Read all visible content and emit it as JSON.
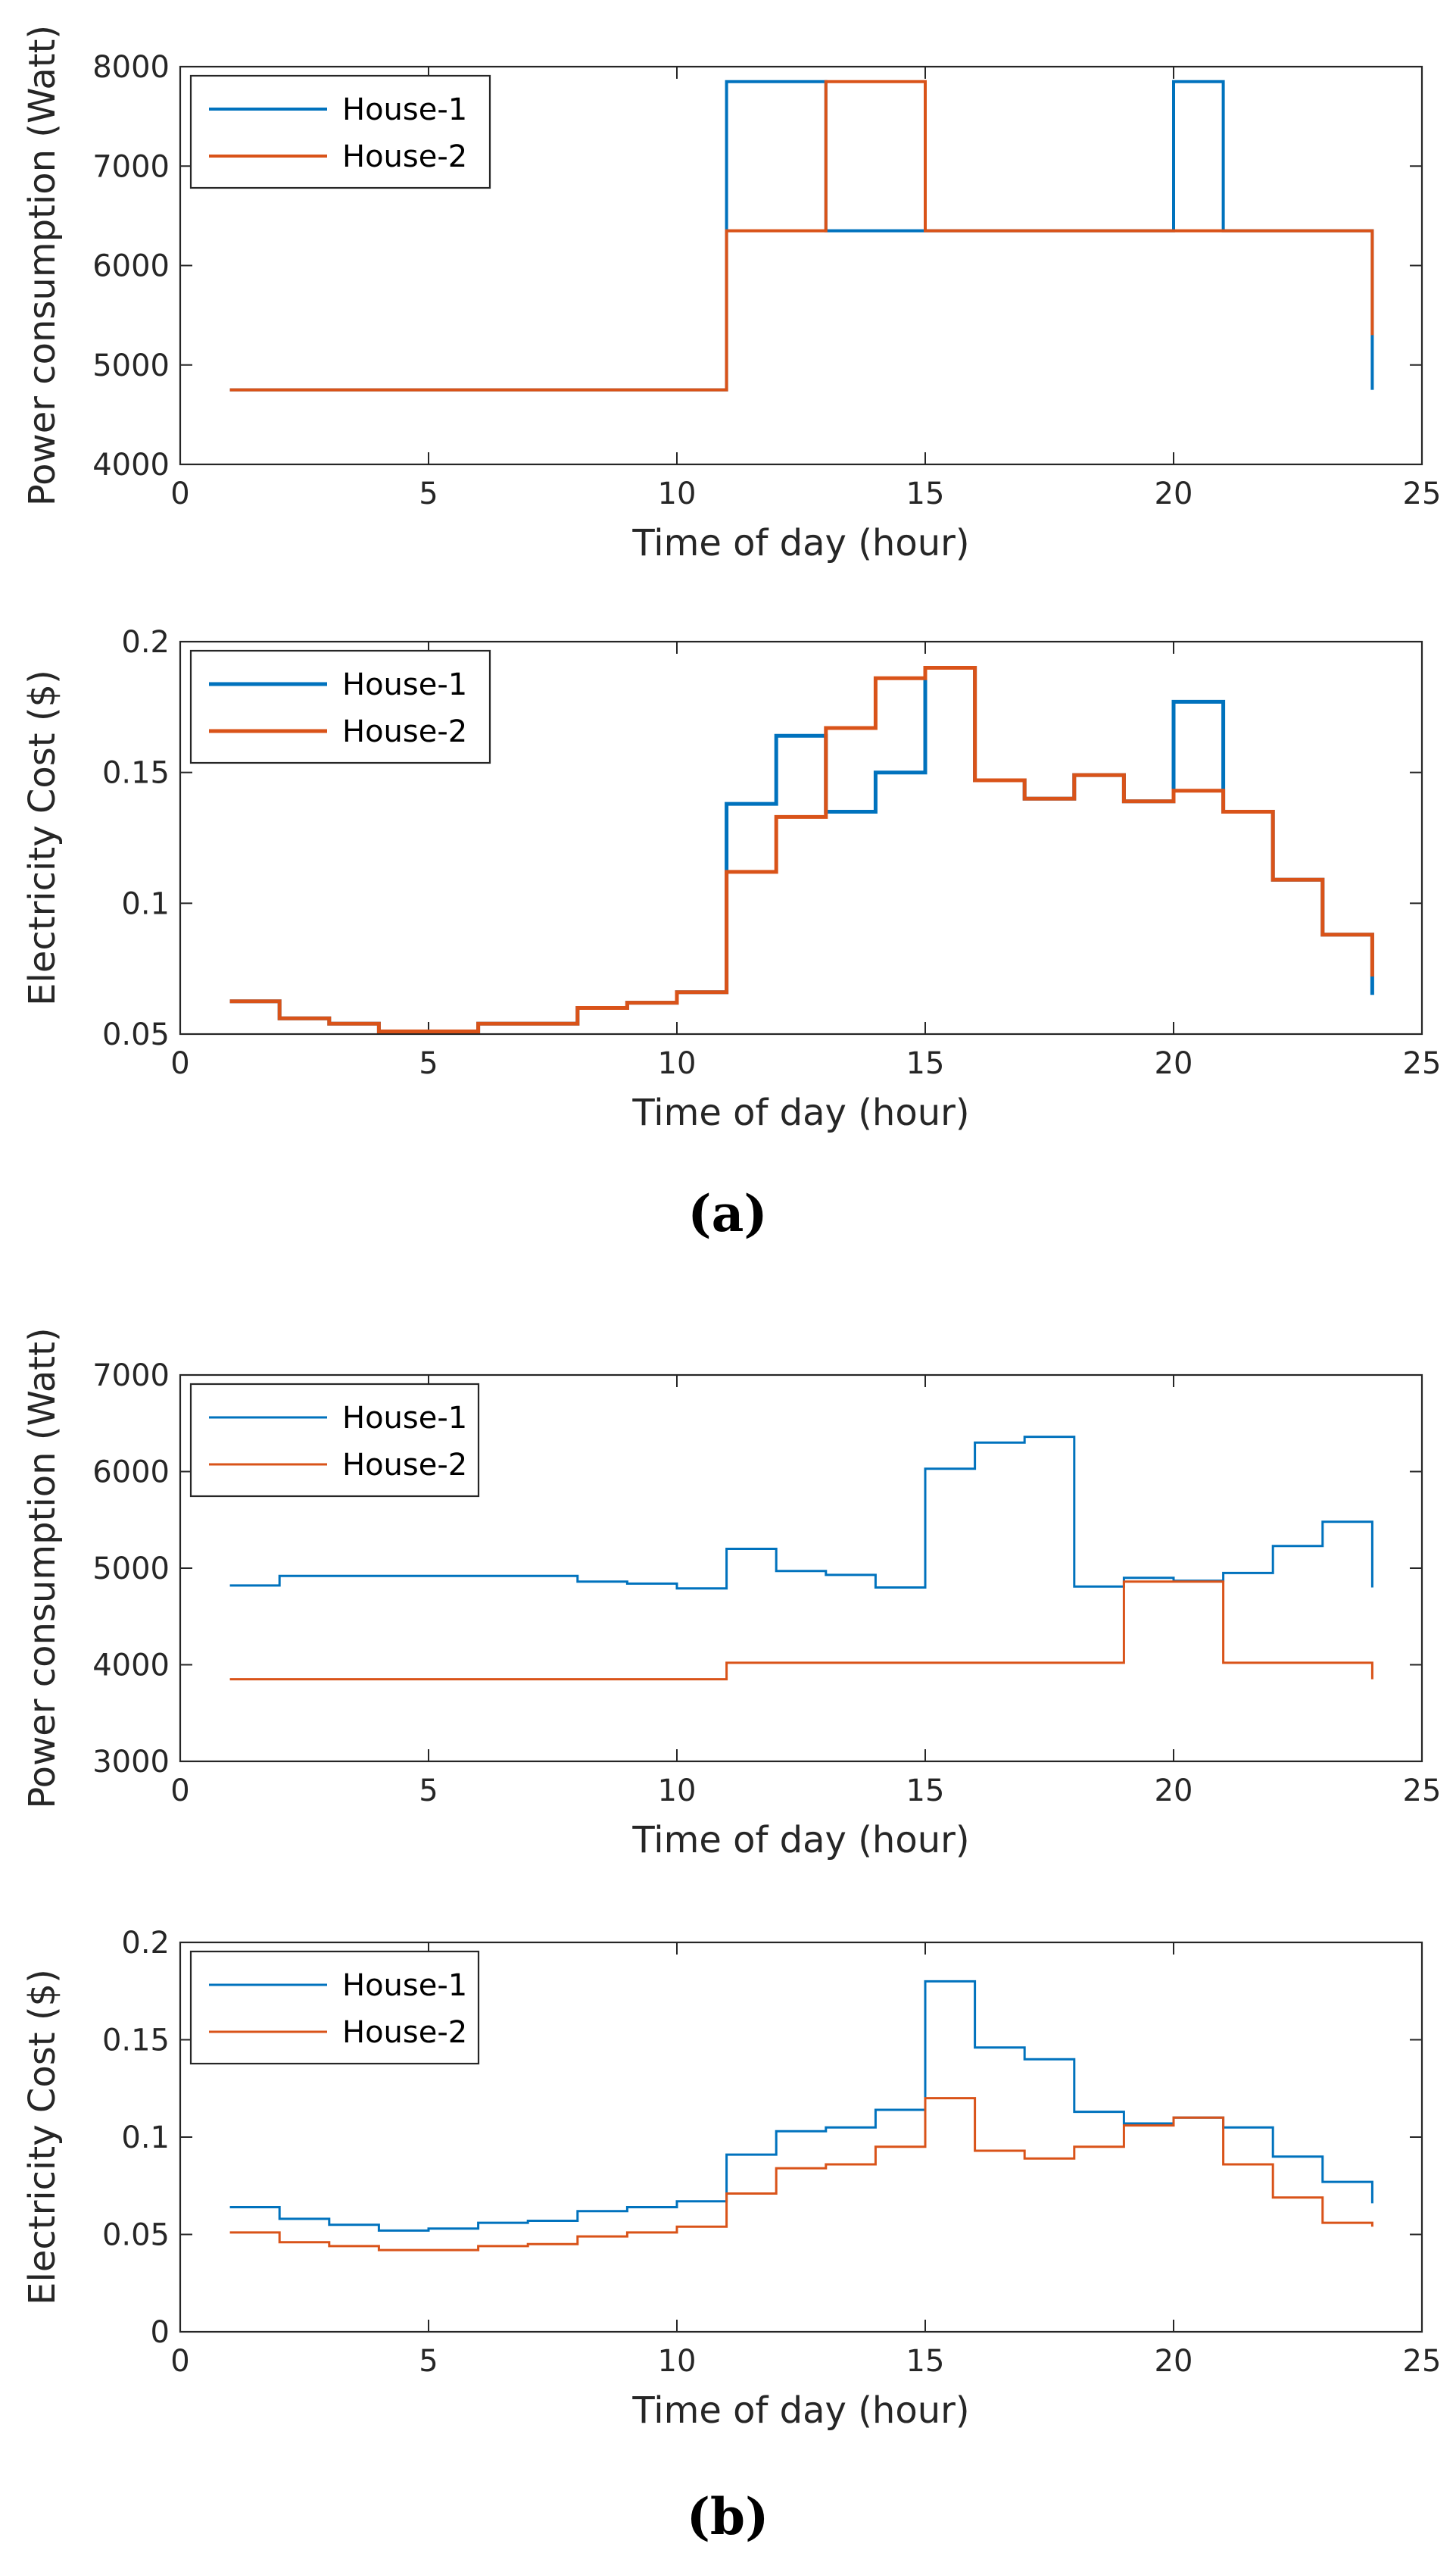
{
  "colors": {
    "house1": "#0072BD",
    "house2": "#D95319",
    "axis": "#262626"
  },
  "captions": {
    "a": "(a)",
    "b": "(b)"
  },
  "chart_data": [
    {
      "id": "a1",
      "type": "line",
      "step": true,
      "title": "",
      "xlabel": "Time of day (hour)",
      "ylabel": "Power consumption (Watt)",
      "xlim": [
        0,
        25
      ],
      "ylim": [
        4000,
        8000
      ],
      "xticks": [
        0,
        5,
        10,
        15,
        20,
        25
      ],
      "yticks": [
        4000,
        5000,
        6000,
        7000,
        8000
      ],
      "ytick_labels": [
        "4000",
        "5000",
        "6000",
        "7000",
        "8000"
      ],
      "legend_position": "top-left",
      "x": [
        1,
        2,
        3,
        4,
        5,
        6,
        7,
        8,
        9,
        10,
        11,
        12,
        13,
        14,
        15,
        16,
        17,
        18,
        19,
        20,
        21,
        22,
        23,
        24
      ],
      "series": [
        {
          "name": "House-1",
          "color_key": "house1",
          "values": [
            4750,
            4750,
            4750,
            4750,
            4750,
            4750,
            4750,
            4750,
            4750,
            4750,
            7850,
            7850,
            6350,
            6350,
            6350,
            6350,
            6350,
            6350,
            6350,
            7850,
            6350,
            6350,
            6350,
            4750
          ]
        },
        {
          "name": "House-2",
          "color_key": "house2",
          "values": [
            4750,
            4750,
            4750,
            4750,
            4750,
            4750,
            4750,
            4750,
            4750,
            4750,
            6350,
            6350,
            7850,
            7850,
            6350,
            6350,
            6350,
            6350,
            6350,
            6350,
            6350,
            6350,
            6350,
            5300
          ]
        }
      ]
    },
    {
      "id": "a2",
      "type": "line",
      "step": true,
      "title": "",
      "xlabel": "Time of day (hour)",
      "ylabel": "Electricity Cost ($)",
      "xlim": [
        0,
        25
      ],
      "ylim": [
        0.05,
        0.2
      ],
      "xticks": [
        0,
        5,
        10,
        15,
        20,
        25
      ],
      "yticks": [
        0.05,
        0.1,
        0.15,
        0.2
      ],
      "ytick_labels": [
        "0.05",
        "0.1",
        "0.15",
        "0.2"
      ],
      "legend_position": "top-left",
      "x": [
        1,
        2,
        3,
        4,
        5,
        6,
        7,
        8,
        9,
        10,
        11,
        12,
        13,
        14,
        15,
        16,
        17,
        18,
        19,
        20,
        21,
        22,
        23,
        24
      ],
      "series": [
        {
          "name": "House-1",
          "color_key": "house1",
          "values": [
            0.0625,
            0.056,
            0.054,
            0.051,
            0.051,
            0.054,
            0.054,
            0.06,
            0.062,
            0.066,
            0.138,
            0.164,
            0.135,
            0.15,
            0.19,
            0.147,
            0.14,
            0.149,
            0.139,
            0.177,
            0.135,
            0.109,
            0.088,
            0.065
          ]
        },
        {
          "name": "House-2",
          "color_key": "house2",
          "values": [
            0.0625,
            0.056,
            0.054,
            0.051,
            0.051,
            0.054,
            0.054,
            0.06,
            0.062,
            0.066,
            0.112,
            0.133,
            0.167,
            0.186,
            0.19,
            0.147,
            0.14,
            0.149,
            0.139,
            0.143,
            0.135,
            0.109,
            0.088,
            0.072
          ]
        }
      ]
    },
    {
      "id": "b1",
      "type": "line",
      "step": true,
      "title": "",
      "xlabel": "Time of day (hour)",
      "ylabel": "Power consumption (Watt)",
      "xlim": [
        0,
        25
      ],
      "ylim": [
        3000,
        7000
      ],
      "xticks": [
        0,
        5,
        10,
        15,
        20,
        25
      ],
      "yticks": [
        3000,
        4000,
        5000,
        6000,
        7000
      ],
      "ytick_labels": [
        "3000",
        "4000",
        "5000",
        "6000",
        "7000"
      ],
      "legend_position": "top-left",
      "x": [
        1,
        2,
        3,
        4,
        5,
        6,
        7,
        8,
        9,
        10,
        11,
        12,
        13,
        14,
        15,
        16,
        17,
        18,
        19,
        20,
        21,
        22,
        23,
        24
      ],
      "series": [
        {
          "name": "House-1",
          "color_key": "house1",
          "values": [
            4820,
            4920,
            4920,
            4920,
            4920,
            4920,
            4920,
            4860,
            4840,
            4790,
            5200,
            4970,
            4930,
            4800,
            6030,
            6300,
            6360,
            4810,
            4900,
            4870,
            4950,
            5230,
            5480,
            4800
          ]
        },
        {
          "name": "House-2",
          "color_key": "house2",
          "values": [
            3850,
            3850,
            3850,
            3850,
            3850,
            3850,
            3850,
            3850,
            3850,
            3850,
            4020,
            4020,
            4020,
            4020,
            4020,
            4020,
            4020,
            4020,
            4860,
            4860,
            4020,
            4020,
            4020,
            3850
          ]
        }
      ]
    },
    {
      "id": "b2",
      "type": "line",
      "step": true,
      "title": "",
      "xlabel": "Time of day (hour)",
      "ylabel": "Electricity Cost ($)",
      "xlim": [
        0,
        25
      ],
      "ylim": [
        0,
        0.2
      ],
      "xticks": [
        0,
        5,
        10,
        15,
        20,
        25
      ],
      "yticks": [
        0,
        0.05,
        0.1,
        0.15,
        0.2
      ],
      "ytick_labels": [
        "0",
        "0.05",
        "0.1",
        "0.15",
        "0.2"
      ],
      "legend_position": "top-left",
      "x": [
        1,
        2,
        3,
        4,
        5,
        6,
        7,
        8,
        9,
        10,
        11,
        12,
        13,
        14,
        15,
        16,
        17,
        18,
        19,
        20,
        21,
        22,
        23,
        24
      ],
      "series": [
        {
          "name": "House-1",
          "color_key": "house1",
          "values": [
            0.064,
            0.058,
            0.055,
            0.052,
            0.053,
            0.056,
            0.057,
            0.062,
            0.064,
            0.067,
            0.091,
            0.103,
            0.105,
            0.114,
            0.18,
            0.146,
            0.14,
            0.113,
            0.107,
            0.11,
            0.105,
            0.09,
            0.077,
            0.066
          ]
        },
        {
          "name": "House-2",
          "color_key": "house2",
          "values": [
            0.051,
            0.046,
            0.044,
            0.042,
            0.042,
            0.044,
            0.045,
            0.049,
            0.051,
            0.054,
            0.071,
            0.084,
            0.086,
            0.095,
            0.12,
            0.093,
            0.089,
            0.095,
            0.106,
            0.11,
            0.086,
            0.069,
            0.056,
            0.054
          ]
        }
      ]
    }
  ]
}
